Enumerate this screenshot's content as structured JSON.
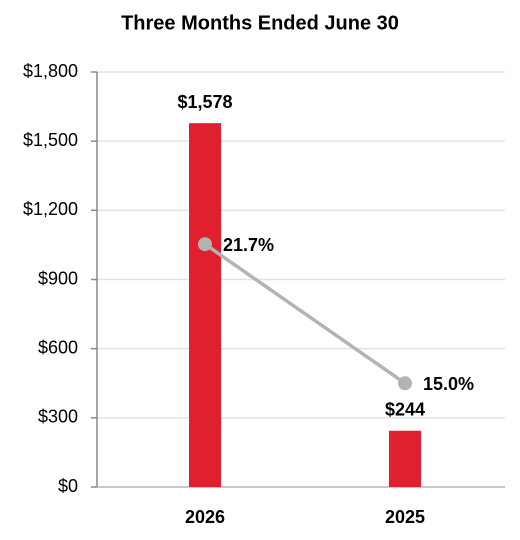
{
  "chart_data": {
    "type": "bar",
    "title": "Three Months Ended June 30",
    "categories": [
      "2026",
      "2025"
    ],
    "series": [
      {
        "type": "bar",
        "color": "#e0202e",
        "values": [
          1578,
          244
        ],
        "value_labels": [
          "$1,578",
          "$244"
        ]
      },
      {
        "type": "line",
        "axis": "y2",
        "color": "#b3b3b3",
        "values": [
          21.7,
          15.0
        ],
        "value_labels": [
          "21.7%",
          "15.0%"
        ]
      }
    ],
    "ylim": [
      0,
      1800
    ],
    "yticks": [
      {
        "value": 0,
        "label": "$0"
      },
      {
        "value": 300,
        "label": "$300"
      },
      {
        "value": 600,
        "label": "$600"
      },
      {
        "value": 900,
        "label": "$900"
      },
      {
        "value": 1200,
        "label": "$1,200"
      },
      {
        "value": 1500,
        "label": "$1,500"
      },
      {
        "value": 1800,
        "label": "$1,800"
      }
    ],
    "y2lim": [
      10,
      30
    ],
    "grid": true
  }
}
